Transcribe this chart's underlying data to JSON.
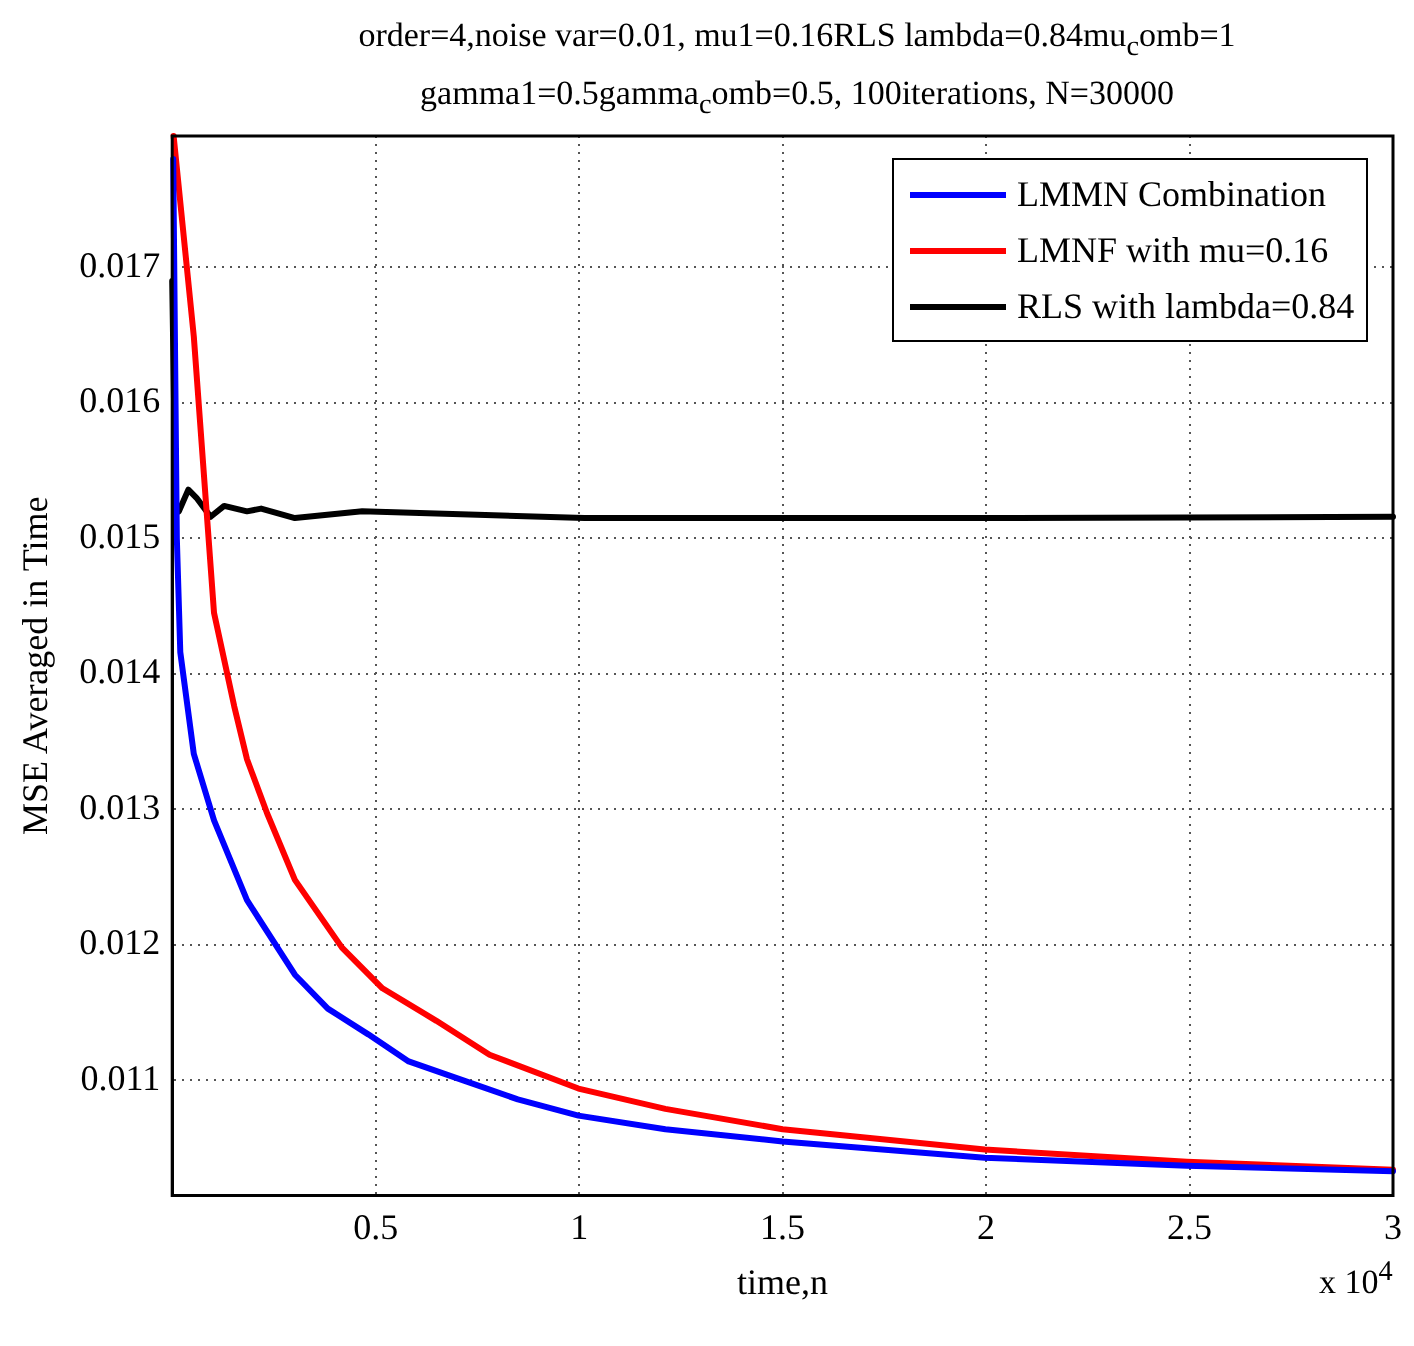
{
  "chart_data": {
    "type": "line",
    "title": "order=4,noise var=0.01, mu1=0.16RLS lambda=0.84mu$_{c}$omb=1",
    "subtitle": "gamma1=0.5gamma$_{c}$omb=0.5, 100iterations, N=30000",
    "xlabel": "time,n",
    "ylabel": "MSE Averaged in Time",
    "annotations": [
      "x 10$^{4}$"
    ],
    "xlim": [
      0,
      3
    ],
    "xticks": [
      0.5,
      1,
      1.5,
      2,
      2.5,
      3
    ],
    "ylim": [
      0.01015,
      0.01797
    ],
    "yticks": [
      0.011,
      0.012,
      0.013,
      0.014,
      0.015,
      0.016,
      0.017
    ],
    "grid": true,
    "legend": "top right",
    "line_style": "solid",
    "marker": "none",
    "series": [
      {
        "name": "LMMN Combination",
        "color": "#0000ff",
        "x": [
          0.0025,
          0.0114,
          0.0199,
          0.0531,
          0.1028,
          0.1838,
          0.3015,
          0.3824,
          0.4818,
          0.5811,
          0.7152,
          0.8493,
          0.9983,
          1.2119,
          1.5,
          1.9967,
          2.4934,
          3
        ],
        "values": [
          0.0178,
          0.015,
          0.01416,
          0.01341,
          0.01292,
          0.01233,
          0.01178,
          0.01153,
          0.01134,
          0.01114,
          0.011,
          0.01086,
          0.01074,
          0.01064,
          0.01055,
          0.01043,
          0.01037,
          0.01033
        ]
      },
      {
        "name": "LMNF with mu=0.16",
        "color": "#ff0000",
        "x": [
          0.0035,
          0.0531,
          0.1028,
          0.1525,
          0.1838,
          0.2334,
          0.3015,
          0.4172,
          0.5166,
          0.6492,
          0.7798,
          0.9983,
          1.2119,
          1.5,
          1.9967,
          2.4934,
          3
        ],
        "values": [
          0.01797,
          0.01649,
          0.01445,
          0.01376,
          0.01337,
          0.01297,
          0.01248,
          0.01198,
          0.01168,
          0.01144,
          0.01119,
          0.01094,
          0.01079,
          0.01064,
          0.01049,
          0.0104,
          0.01034
        ]
      },
      {
        "name": "RLS with lambda=0.84",
        "color": "#000000",
        "x": [
          0,
          0.0084,
          0.0164,
          0.0397,
          0.0596,
          0.0944,
          0.1277,
          0.1838,
          0.2185,
          0.3015,
          0.4669,
          1.0132,
          2.0066,
          3
        ],
        "values": [
          0.0169,
          0.01524,
          0.0152,
          0.01536,
          0.0153,
          0.01516,
          0.01524,
          0.0152,
          0.01522,
          0.01515,
          0.0152,
          0.01515,
          0.01515,
          0.01516
        ]
      }
    ]
  }
}
